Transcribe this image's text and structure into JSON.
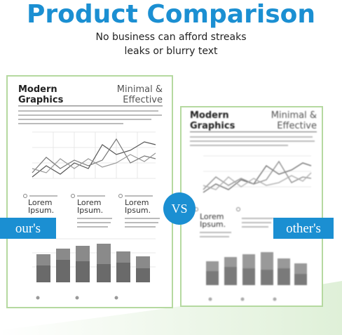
{
  "header": {
    "title": "Product Comparison",
    "subtitle_lines": [
      "No business can afford streaks",
      "leaks or blurry text"
    ]
  },
  "left": {
    "label": "our's",
    "doc": {
      "title_lines": [
        "Modern",
        "Graphics"
      ],
      "tagline_lines": [
        "Minimal &",
        "Effective"
      ],
      "items": [
        [
          "Lorem",
          "Ipsum."
        ],
        [
          "Lorem",
          "Ipsum."
        ],
        [
          "Lorem",
          "Ipsum."
        ]
      ]
    }
  },
  "vs": "VS",
  "right": {
    "label": "other's",
    "doc": {
      "title_lines": [
        "Modern",
        "Graphics"
      ],
      "tagline_lines": [
        "Minimal &",
        "Effective"
      ],
      "items": [
        [
          "Lorem",
          "Ipsum."
        ]
      ]
    }
  }
}
